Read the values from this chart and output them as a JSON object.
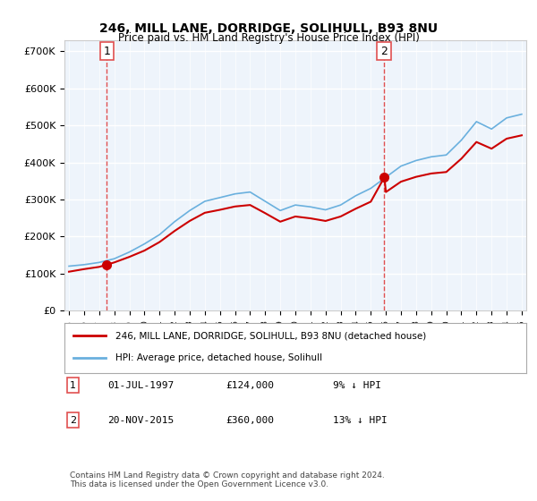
{
  "title1": "246, MILL LANE, DORRIDGE, SOLIHULL, B93 8NU",
  "title2": "Price paid vs. HM Land Registry's House Price Index (HPI)",
  "ylabel_vals": [
    "£0",
    "£100K",
    "£200K",
    "£300K",
    "£400K",
    "£500K",
    "£600K",
    "£700K"
  ],
  "ylim": [
    0,
    730000
  ],
  "yticks": [
    0,
    100000,
    200000,
    300000,
    400000,
    500000,
    600000,
    700000
  ],
  "sale1_date": "1997-07-01",
  "sale1_price": 124000,
  "sale1_label": "1",
  "sale2_date": "2015-11-20",
  "sale2_price": 360000,
  "sale2_label": "2",
  "hpi_color": "#6ab0de",
  "price_color": "#cc0000",
  "dashed_color": "#e05050",
  "bg_plot": "#eef4fb",
  "bg_fig": "#ffffff",
  "grid_color": "#ffffff",
  "legend_line1": "246, MILL LANE, DORRIDGE, SOLIHULL, B93 8NU (detached house)",
  "legend_line2": "HPI: Average price, detached house, Solihull",
  "annotation1": "01-JUL-1997          £124,000          9% ↓ HPI",
  "annotation2": "20-NOV-2015          £360,000          13% ↓ HPI",
  "footer": "Contains HM Land Registry data © Crown copyright and database right 2024.\nThis data is licensed under the Open Government Licence v3.0.",
  "xstart_year": 1995,
  "xend_year": 2025
}
